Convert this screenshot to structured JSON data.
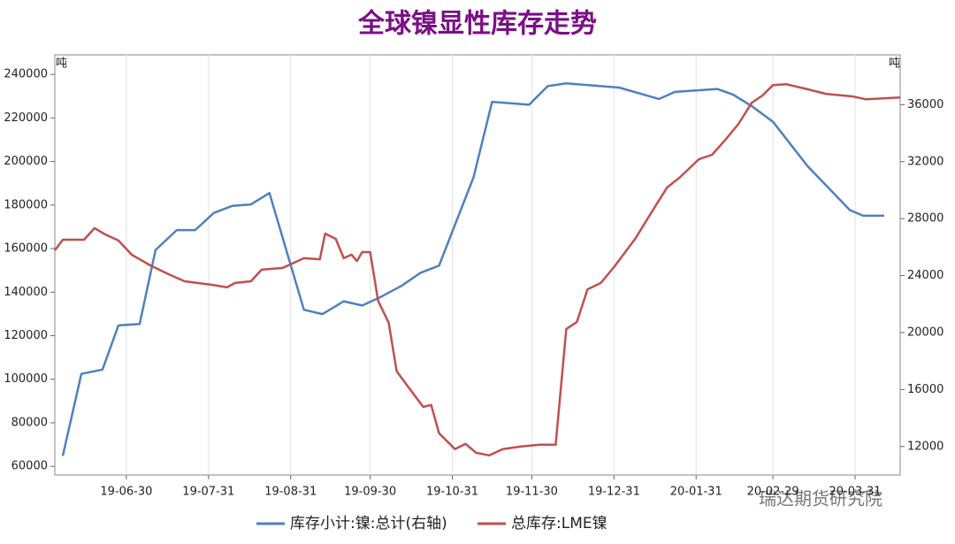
{
  "chart_data": {
    "type": "line",
    "title": "全球镍显性库存走势",
    "y_unit": "吨",
    "y2_unit": "吨",
    "watermark": "瑞达期货研究院",
    "xlim": [
      "19-06-03",
      "20-04-17"
    ],
    "xticks": [
      "19-06-30",
      "19-07-31",
      "19-08-31",
      "19-09-30",
      "19-10-31",
      "19-11-30",
      "19-12-31",
      "20-01-31",
      "20-02-29",
      "20-03-31"
    ],
    "ylim": [
      56000,
      249000
    ],
    "yticks": [
      60000,
      80000,
      100000,
      120000,
      140000,
      160000,
      180000,
      200000,
      220000,
      240000
    ],
    "y2lim": [
      10000,
      39500
    ],
    "y2ticks": [
      12000,
      16000,
      20000,
      24000,
      28000,
      32000,
      36000
    ],
    "series": [
      {
        "name": "库存小计:镍:总计(右轴)",
        "color": "#4f81bd",
        "axis": "y2",
        "x": [
          "19-06-06",
          "19-06-13",
          "19-06-21",
          "19-06-27",
          "19-07-05",
          "19-07-11",
          "19-07-19",
          "19-07-26",
          "19-08-02",
          "19-08-09",
          "19-08-16",
          "19-08-23",
          "19-09-05",
          "19-09-12",
          "19-09-20",
          "19-09-27",
          "19-10-04",
          "19-10-12",
          "19-10-19",
          "19-10-26",
          "19-11-08",
          "19-11-15",
          "19-11-29",
          "19-12-06",
          "19-12-13",
          "20-01-02",
          "20-01-17",
          "20-01-23",
          "20-02-08",
          "20-02-14",
          "20-02-21",
          "20-02-29",
          "20-03-13",
          "20-03-29",
          "20-04-03",
          "20-04-11"
        ],
        "values": [
          11350,
          17100,
          17400,
          20500,
          20600,
          25800,
          27200,
          27200,
          28400,
          28900,
          29000,
          29800,
          21600,
          21300,
          22200,
          21900,
          22500,
          23300,
          24200,
          24700,
          30900,
          36200,
          36000,
          37300,
          37500,
          37200,
          36400,
          36900,
          37100,
          36700,
          35900,
          34800,
          31700,
          28600,
          28200,
          28200
        ]
      },
      {
        "name": "总库存:LME镍",
        "color": "#c0504d",
        "x": [
          "19-06-03",
          "19-06-06",
          "19-06-14",
          "19-06-18",
          "19-06-22",
          "19-06-27",
          "19-07-02",
          "19-07-09",
          "19-07-16",
          "19-07-22",
          "19-08-01",
          "19-08-07",
          "19-08-10",
          "19-08-16",
          "19-08-20",
          "19-08-28",
          "19-09-05",
          "19-09-11",
          "19-09-13",
          "19-09-17",
          "19-09-20",
          "19-09-23",
          "19-09-25",
          "19-09-27",
          "19-09-30",
          "19-10-03",
          "19-10-07",
          "19-10-10",
          "19-10-15",
          "19-10-20",
          "19-10-23",
          "19-10-26",
          "19-11-01",
          "19-11-05",
          "19-11-09",
          "19-11-14",
          "19-11-19",
          "19-11-26",
          "19-12-03",
          "19-12-09",
          "19-12-13",
          "19-12-17",
          "19-12-21",
          "19-12-26",
          "19-12-31",
          "20-01-08",
          "20-01-15",
          "20-01-20",
          "20-01-25",
          "20-02-01",
          "20-02-06",
          "20-02-11",
          "20-02-16",
          "20-02-21",
          "20-02-25",
          "20-02-29",
          "20-03-05",
          "20-03-12",
          "20-03-20",
          "20-03-30",
          "20-04-04",
          "20-04-17"
        ],
        "values": [
          159200,
          164100,
          164100,
          169400,
          166500,
          163700,
          157200,
          152300,
          148200,
          145000,
          143400,
          142200,
          144200,
          145000,
          150300,
          151100,
          155600,
          155100,
          166900,
          164500,
          155600,
          157200,
          154300,
          158400,
          158400,
          136000,
          125900,
          103600,
          95400,
          87300,
          88200,
          75200,
          67900,
          70300,
          66200,
          65000,
          67900,
          69100,
          69900,
          69900,
          123100,
          126300,
          141300,
          144200,
          151500,
          164500,
          178300,
          188000,
          192900,
          201000,
          203100,
          209900,
          217300,
          227000,
          230300,
          235100,
          235500,
          233500,
          231100,
          229900,
          228600,
          229400
        ]
      }
    ]
  }
}
